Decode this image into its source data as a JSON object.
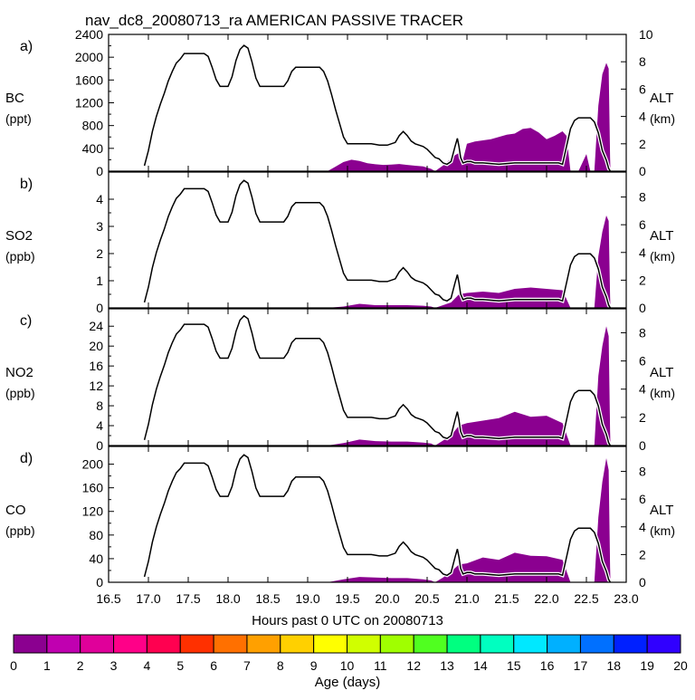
{
  "title": "nav_dc8_20080713_ra AMERICAN PASSIVE TRACER",
  "xlabel": "Hours past 0 UTC on 20080713",
  "colorbar": {
    "label": "Age (days)",
    "ticks": [
      "0",
      "1",
      "2",
      "3",
      "4",
      "5",
      "6",
      "7",
      "8",
      "9",
      "10",
      "11",
      "12",
      "13",
      "14",
      "15",
      "16",
      "17",
      "18",
      "19",
      "20"
    ],
    "colors": [
      "#8b0090",
      "#c000b0",
      "#e0009a",
      "#ff0088",
      "#ff0050",
      "#ff3000",
      "#ff7000",
      "#ffa000",
      "#ffd000",
      "#ffff00",
      "#d0ff00",
      "#a0ff00",
      "#50ff20",
      "#00ff80",
      "#00ffc0",
      "#00e8ff",
      "#00b0ff",
      "#0070ff",
      "#0020ff",
      "#3000ff",
      "#7000ff"
    ]
  },
  "chart_data": [
    {
      "type": "area",
      "panel": "a)",
      "ylabel": "BC",
      "yunits": "(ppt)",
      "yticks": [
        0,
        400,
        800,
        1200,
        1600,
        2000,
        2400
      ],
      "ylim": [
        0,
        2400
      ],
      "xlim": [
        16.5,
        23.0
      ],
      "xticks": [
        "16.5",
        "17.0",
        "17.5",
        "18.0",
        "18.5",
        "19.0",
        "19.5",
        "20.0",
        "20.5",
        "21.0",
        "21.5",
        "22.0",
        "22.5",
        "23.0"
      ],
      "right_label": "ALT",
      "right_units": "(km)",
      "right_ticks": [
        0,
        2,
        4,
        6,
        8,
        10
      ],
      "right_lim": [
        0,
        10
      ],
      "altitude": {
        "x": [
          16.95,
          17.0,
          17.05,
          17.1,
          17.15,
          17.2,
          17.25,
          17.3,
          17.35,
          17.4,
          17.45,
          17.5,
          17.55,
          17.6,
          17.65,
          17.7,
          17.75,
          17.8,
          17.85,
          17.9,
          17.95,
          18.0,
          18.05,
          18.1,
          18.15,
          18.2,
          18.25,
          18.3,
          18.35,
          18.4,
          18.45,
          18.5,
          18.55,
          18.6,
          18.65,
          18.7,
          18.75,
          18.8,
          18.85,
          18.9,
          18.95,
          19.0,
          19.05,
          19.1,
          19.15,
          19.2,
          19.25,
          19.3,
          19.35,
          19.4,
          19.45,
          19.5,
          19.6,
          19.7,
          19.8,
          19.9,
          20.0,
          20.1,
          20.15,
          20.2,
          20.25,
          20.3,
          20.35,
          20.4,
          20.45,
          20.5,
          20.55,
          20.6,
          20.65,
          20.7,
          20.75,
          20.8,
          20.85,
          20.88,
          20.9,
          20.92,
          20.95,
          21.0,
          21.05,
          21.1,
          21.2,
          21.4,
          21.6,
          21.8,
          22.0,
          22.1,
          22.15,
          22.2,
          22.3,
          22.35,
          22.4,
          22.5,
          22.55,
          22.6,
          22.65,
          22.7,
          22.75,
          22.78,
          22.8
        ],
        "y": [
          0.4,
          1.5,
          2.9,
          4.0,
          4.9,
          5.7,
          6.6,
          7.3,
          7.9,
          8.2,
          8.6,
          8.6,
          8.6,
          8.6,
          8.6,
          8.6,
          8.4,
          7.6,
          6.7,
          6.2,
          6.2,
          6.2,
          6.9,
          8.1,
          8.9,
          9.2,
          9.0,
          8.0,
          6.8,
          6.2,
          6.2,
          6.2,
          6.2,
          6.2,
          6.2,
          6.2,
          6.6,
          7.3,
          7.6,
          7.6,
          7.6,
          7.6,
          7.6,
          7.6,
          7.6,
          7.3,
          6.6,
          5.6,
          4.5,
          3.5,
          2.5,
          2.0,
          2.0,
          2.0,
          2.0,
          1.9,
          1.9,
          2.1,
          2.6,
          2.9,
          2.6,
          2.2,
          2.0,
          1.9,
          1.8,
          1.6,
          1.3,
          1.0,
          0.9,
          0.6,
          0.5,
          0.7,
          1.8,
          2.4,
          1.8,
          1.0,
          0.6,
          0.7,
          0.7,
          0.6,
          0.6,
          0.5,
          0.6,
          0.6,
          0.6,
          0.6,
          0.6,
          0.5,
          3.1,
          3.7,
          3.9,
          3.9,
          3.9,
          3.6,
          2.8,
          1.5,
          0.8,
          0.2,
          0.0
        ]
      },
      "tracer_total": {
        "x": [
          19.25,
          19.35,
          19.45,
          19.55,
          19.65,
          19.75,
          19.85,
          19.95,
          20.05,
          20.15,
          20.25,
          20.35,
          20.45,
          20.55,
          20.6,
          20.7,
          20.75,
          20.8,
          20.85,
          20.9,
          20.95,
          21.0,
          21.1,
          21.2,
          21.3,
          21.4,
          21.5,
          21.6,
          21.7,
          21.8,
          21.9,
          22.0,
          22.1,
          22.2,
          22.25,
          22.3,
          22.4,
          22.45,
          22.5,
          22.55,
          22.6,
          22.65,
          22.7,
          22.75,
          22.78,
          22.8
        ],
        "y": [
          0,
          80,
          160,
          200,
          180,
          140,
          120,
          110,
          115,
          125,
          110,
          95,
          85,
          40,
          0,
          100,
          160,
          220,
          280,
          320,
          200,
          480,
          520,
          540,
          560,
          600,
          640,
          660,
          740,
          760,
          680,
          560,
          620,
          700,
          620,
          0,
          0,
          150,
          300,
          0,
          0,
          1150,
          1700,
          1900,
          1800,
          0
        ]
      }
    },
    {
      "type": "area",
      "panel": "b)",
      "ylabel": "SO2",
      "yunits": "(ppb)",
      "yticks": [
        0,
        1,
        2,
        3,
        4
      ],
      "ylim": [
        0,
        5
      ],
      "xlim": [
        16.5,
        23.0
      ],
      "right_label": "ALT",
      "right_units": "(km)",
      "right_ticks": [
        0,
        2,
        4,
        6,
        8
      ],
      "right_lim": [
        0,
        9.8
      ],
      "tracer_total": {
        "x": [
          19.25,
          19.45,
          19.65,
          19.85,
          20.05,
          20.25,
          20.45,
          20.55,
          20.6,
          20.7,
          20.8,
          20.9,
          21.0,
          21.2,
          21.4,
          21.6,
          21.8,
          22.0,
          22.2,
          22.3,
          22.4,
          22.55,
          22.6,
          22.65,
          22.7,
          22.75,
          22.78,
          22.8
        ],
        "y": [
          0,
          0.05,
          0.15,
          0.1,
          0.1,
          0.1,
          0.08,
          0.05,
          0,
          0.1,
          0.2,
          0.5,
          0.55,
          0.6,
          0.55,
          0.7,
          0.75,
          0.7,
          0.65,
          0,
          0,
          0,
          0,
          1.9,
          2.8,
          3.4,
          3.2,
          0
        ]
      }
    },
    {
      "type": "area",
      "panel": "c)",
      "ylabel": "NO2",
      "yunits": "(ppb)",
      "yticks": [
        0,
        4,
        8,
        12,
        16,
        20,
        24
      ],
      "ylim": [
        0,
        27.5
      ],
      "xlim": [
        16.5,
        23.0
      ],
      "right_label": "ALT",
      "right_units": "(km)",
      "right_ticks": [
        0,
        2,
        4,
        6,
        8
      ],
      "right_lim": [
        0,
        9.7
      ],
      "tracer_total": {
        "x": [
          19.25,
          19.45,
          19.65,
          19.85,
          20.05,
          20.25,
          20.45,
          20.55,
          20.6,
          20.7,
          20.8,
          20.9,
          21.0,
          21.2,
          21.4,
          21.6,
          21.8,
          22.0,
          22.2,
          22.3,
          22.4,
          22.55,
          22.6,
          22.65,
          22.7,
          22.75,
          22.78,
          22.8
        ],
        "y": [
          0,
          0.5,
          1.2,
          0.9,
          0.8,
          0.8,
          0.6,
          0.4,
          0,
          1,
          2,
          4,
          4.5,
          5,
          5.5,
          6.8,
          5.8,
          6,
          4.5,
          0,
          0,
          0,
          0,
          14,
          20,
          24,
          22,
          0
        ]
      }
    },
    {
      "type": "area",
      "panel": "d)",
      "ylabel": "CO",
      "yunits": "(ppb)",
      "yticks": [
        0,
        40,
        80,
        120,
        160,
        200
      ],
      "ylim": [
        0,
        230
      ],
      "xlim": [
        16.5,
        23.0
      ],
      "right_label": "ALT",
      "right_units": "(km)",
      "right_ticks": [
        0,
        2,
        4,
        6,
        8
      ],
      "right_lim": [
        0,
        9.8
      ],
      "tracer_total": {
        "x": [
          19.25,
          19.45,
          19.65,
          19.85,
          20.05,
          20.25,
          20.45,
          20.55,
          20.6,
          20.7,
          20.8,
          20.9,
          21.0,
          21.2,
          21.4,
          21.6,
          21.8,
          22.0,
          22.2,
          22.3,
          22.4,
          22.55,
          22.6,
          22.65,
          22.7,
          22.75,
          22.78,
          22.8
        ],
        "y": [
          0,
          5,
          9,
          8,
          7,
          7,
          5,
          3,
          0,
          8,
          18,
          30,
          32,
          42,
          38,
          50,
          45,
          44,
          38,
          0,
          0,
          0,
          0,
          110,
          170,
          210,
          190,
          0
        ]
      }
    }
  ]
}
